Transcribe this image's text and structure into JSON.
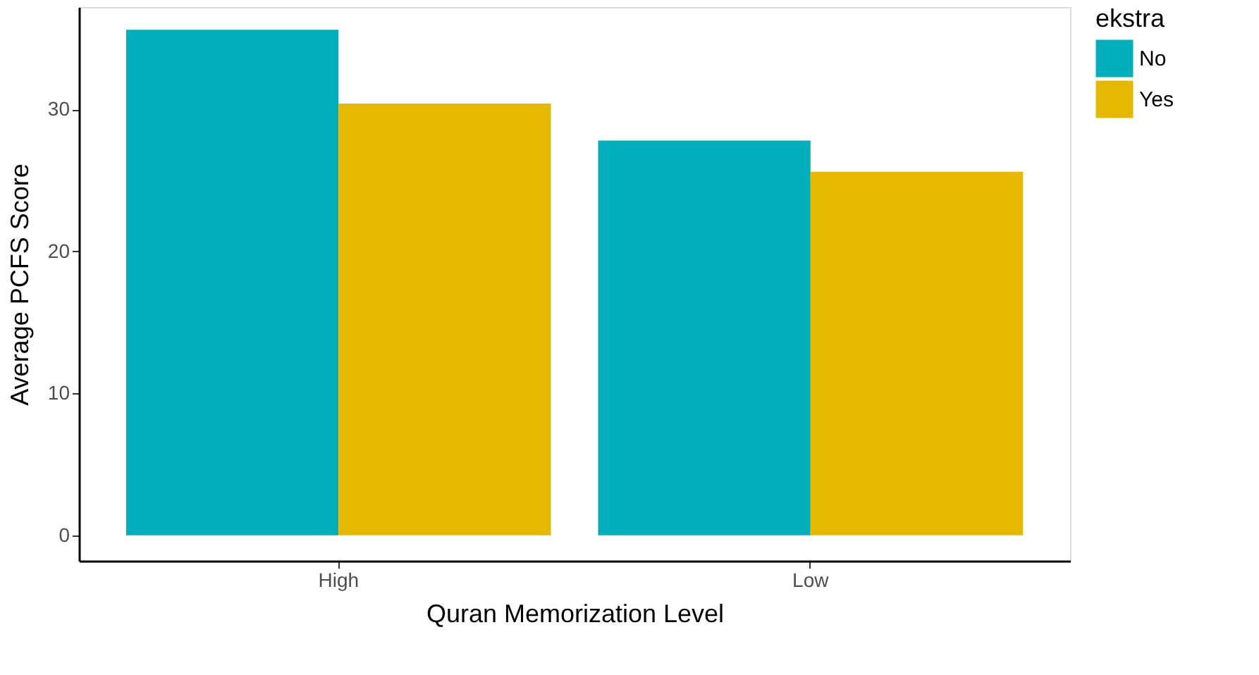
{
  "chart_data": {
    "type": "bar",
    "xlabel": "Quran Memorization Level",
    "ylabel": "Average PCFS Score",
    "legend_title": "ekstra",
    "categories": [
      "High",
      "Low"
    ],
    "series": [
      {
        "name": "No",
        "color": "#00afbb",
        "values": [
          35.6,
          27.8
        ]
      },
      {
        "name": "Yes",
        "color": "#e7b800",
        "values": [
          30.4,
          25.6
        ]
      }
    ],
    "ylim": [
      -1.8,
      37.2
    ],
    "yticks": [
      0,
      10,
      20,
      30
    ],
    "grid": false,
    "legend": "right"
  }
}
